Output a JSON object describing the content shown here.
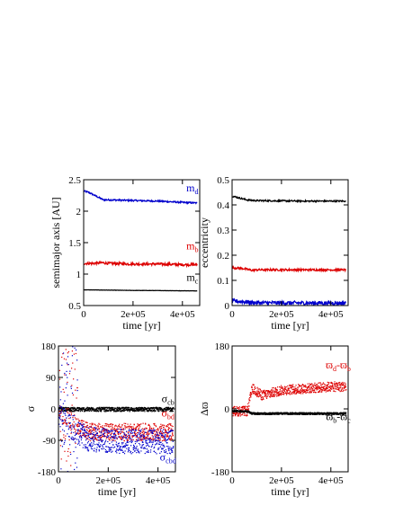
{
  "chart_data": [
    {
      "id": "semimajor",
      "type": "line",
      "xlabel": "time  [yr]",
      "ylabel": "semimajor axis [AU]",
      "xlim": [
        0,
        470000
      ],
      "ylim": [
        0.5,
        2.5
      ],
      "xticks": [
        0,
        200000,
        400000
      ],
      "xtick_labels": [
        "0",
        "2e+05",
        "4e+05"
      ],
      "yticks": [
        0.5,
        1,
        1.5,
        2,
        2.5
      ],
      "ytick_labels": [
        "0.5",
        "1",
        "1.5",
        "2",
        "2.5"
      ],
      "grid": false,
      "series": [
        {
          "name": "m_d",
          "color": "#0000cc",
          "x": [
            0,
            20000,
            40000,
            60000,
            80000,
            100000,
            200000,
            300000,
            400000,
            460000
          ],
          "y": [
            2.32,
            2.3,
            2.26,
            2.22,
            2.18,
            2.18,
            2.17,
            2.16,
            2.14,
            2.13
          ],
          "noise": 0.012
        },
        {
          "name": "m_b",
          "color": "#dd0000",
          "x": [
            0,
            40000,
            80000,
            100000,
            200000,
            300000,
            400000,
            460000
          ],
          "y": [
            1.17,
            1.17,
            1.18,
            1.17,
            1.16,
            1.16,
            1.15,
            1.15
          ],
          "noise": 0.02
        },
        {
          "name": "m_c",
          "color": "#000000",
          "x": [
            0,
            100000,
            200000,
            300000,
            400000,
            460000
          ],
          "y": [
            0.75,
            0.745,
            0.74,
            0.738,
            0.735,
            0.733
          ],
          "noise": 0.002
        }
      ],
      "labels": [
        {
          "text": "m",
          "sub": "d",
          "color": "#0000cc",
          "x": 440000,
          "y": 2.27
        },
        {
          "text": "m",
          "sub": "b",
          "color": "#dd0000",
          "x": 440000,
          "y": 1.35
        },
        {
          "text": "m",
          "sub": "c",
          "color": "#000000",
          "x": 440000,
          "y": 0.85
        }
      ]
    },
    {
      "id": "eccentricity",
      "type": "line",
      "xlabel": "time  [yr]",
      "ylabel": "eccentricity",
      "xlim": [
        0,
        470000
      ],
      "ylim": [
        0,
        0.5
      ],
      "xticks": [
        0,
        200000,
        400000
      ],
      "xtick_labels": [
        "0",
        "2e+05",
        "4e+05"
      ],
      "yticks": [
        0,
        0.1,
        0.2,
        0.3,
        0.4,
        0.5
      ],
      "ytick_labels": [
        "0",
        "0.1",
        "0.2",
        "0.3",
        "0.4",
        "0.5"
      ],
      "grid": false,
      "series": [
        {
          "name": "black",
          "color": "#000000",
          "x": [
            0,
            20000,
            40000,
            60000,
            80000,
            100000,
            200000,
            300000,
            400000,
            460000
          ],
          "y": [
            0.435,
            0.43,
            0.425,
            0.42,
            0.418,
            0.417,
            0.416,
            0.415,
            0.415,
            0.415
          ],
          "noise": 0.003
        },
        {
          "name": "red",
          "color": "#dd0000",
          "x": [
            0,
            40000,
            80000,
            100000,
            200000,
            300000,
            400000,
            460000
          ],
          "y": [
            0.15,
            0.148,
            0.14,
            0.142,
            0.142,
            0.142,
            0.142,
            0.142
          ],
          "noise": 0.004
        },
        {
          "name": "blue",
          "color": "#0000cc",
          "x": [
            0,
            40000,
            80000,
            100000,
            200000,
            300000,
            400000,
            460000
          ],
          "y": [
            0.018,
            0.016,
            0.012,
            0.011,
            0.01,
            0.01,
            0.01,
            0.01
          ],
          "noise": 0.008
        }
      ],
      "labels": []
    },
    {
      "id": "resonant-angles",
      "type": "scatter",
      "xlabel": "time  [yr]",
      "ylabel": "σ",
      "xlim": [
        0,
        470000
      ],
      "ylim": [
        -180,
        180
      ],
      "xticks": [
        0,
        200000,
        400000
      ],
      "xtick_labels": [
        "0",
        "2e+05",
        "4e+05"
      ],
      "yticks": [
        -180,
        -90,
        0,
        90,
        180
      ],
      "ytick_labels": [
        "-180",
        "-90",
        "0",
        "90",
        "180"
      ],
      "grid": false,
      "series": [
        {
          "name": "σ_cb",
          "color": "#000000",
          "x": [
            0,
            460000
          ],
          "y": [
            0,
            0
          ],
          "spread": 6,
          "early_scatter": false
        },
        {
          "name": "σ_bd",
          "color": "#dd0000",
          "x": [
            0,
            80000,
            120000,
            200000,
            300000,
            400000,
            460000
          ],
          "y": [
            -10,
            -50,
            -65,
            -65,
            -65,
            -65,
            -65
          ],
          "spread": 25,
          "early_scatter": true
        },
        {
          "name": "σ_cbd",
          "color": "#0000cc",
          "x": [
            0,
            80000,
            120000,
            200000,
            300000,
            400000,
            460000
          ],
          "y": [
            -20,
            -70,
            -85,
            -90,
            -92,
            -92,
            -92
          ],
          "spread": 35,
          "early_scatter": true
        }
      ],
      "labels": [
        {
          "text": "σ",
          "sub": "cb",
          "color": "#000000",
          "x": 440000,
          "y": 12
        },
        {
          "text": "σ",
          "sub": "bd",
          "color": "#dd0000",
          "x": 440000,
          "y": -30
        },
        {
          "text": "σ",
          "sub": "cbd",
          "color": "#0000cc",
          "x": 440000,
          "y": -155
        }
      ]
    },
    {
      "id": "apsidal",
      "type": "scatter",
      "xlabel": "time  [yr]",
      "ylabel": "Δϖ",
      "xlim": [
        0,
        470000
      ],
      "ylim": [
        -180,
        180
      ],
      "xticks": [
        0,
        200000,
        400000
      ],
      "xtick_labels": [
        "0",
        "2e+05",
        "4e+05"
      ],
      "yticks": [
        -180,
        0,
        180
      ],
      "ytick_labels": [
        "-180",
        "0",
        "180"
      ],
      "grid": false,
      "series": [
        {
          "name": "ϖ_d-ϖ_b",
          "color": "#dd0000",
          "x": [
            0,
            60000,
            80000,
            120000,
            200000,
            300000,
            400000,
            460000
          ],
          "y": [
            -5,
            -5,
            60,
            40,
            55,
            60,
            65,
            65
          ],
          "spread": 14,
          "early_scatter": false
        },
        {
          "name": "ϖ_b-ϖ_c",
          "color": "#000000",
          "x": [
            0,
            60000,
            80000,
            200000,
            300000,
            400000,
            460000
          ],
          "y": [
            -5,
            -6,
            -12,
            -12,
            -12,
            -12,
            -12
          ],
          "spread": 3,
          "early_scatter": false
        }
      ],
      "labels": [
        {
          "text": "ϖ",
          "sub": "d",
          "text2": "-ϖ",
          "sub2": "b",
          "color": "#dd0000",
          "x": 430000,
          "y": 108
        },
        {
          "text": "ϖ",
          "sub": "b",
          "text2": "-ϖ",
          "sub2": "c",
          "color": "#000000",
          "x": 430000,
          "y": -40
        }
      ]
    }
  ]
}
